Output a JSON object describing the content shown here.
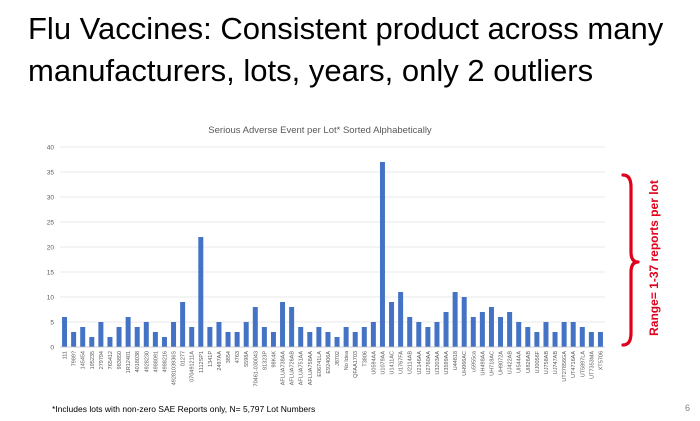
{
  "slide": {
    "title": "Flu Vaccines: Consistent product across many\nmanufacturers, lots, years, only 2 outliers",
    "footnote": "*Includes lots with non-zero SAE Reports only, N= 5,797 Lot Numbers",
    "slide_number": "6",
    "annotation": "Range= 1-37 reports per lot",
    "accent_color": "#e0001b"
  },
  "chart_data": {
    "type": "bar",
    "title": "Serious Adverse Event per Lot* Sorted Alphabetically",
    "xlabel": "",
    "ylabel": "",
    "ylim": [
      0,
      40
    ],
    "yticks": [
      0,
      5,
      10,
      15,
      20,
      25,
      30,
      35,
      40
    ],
    "grid": true,
    "bar_color": "#4472c4",
    "categories": [
      "111",
      "7989?",
      "145454",
      "195235",
      "279794",
      "765412",
      "983850",
      "1R12401",
      "4018038",
      "4928230",
      "4988091",
      "4988216",
      "4928103936S",
      "01277",
      "070491211A",
      "1112SP1",
      "1341P",
      "2497AA",
      "3854",
      "4763",
      "5598A",
      "70461-030043",
      "81323P",
      "98K4K",
      "AFLUA738AA",
      "AFLUA726AB",
      "AFLUA751AA",
      "AFLUA758AA",
      "E06741LA",
      "E92406A",
      "J8702",
      "No Idea",
      "QFAA1703",
      "T3806",
      "U0594AA",
      "U1079AA",
      "U1411AC",
      "U1767FA",
      "U2114AB",
      "U2146AA",
      "U2760AA",
      "U3203AA",
      "U3599AA",
      "U44818",
      "UH966AC",
      "u5955ca",
      "UH498AA",
      "UH718AC",
      "UH9072A",
      "UJ422AB",
      "UI544AA",
      "UI826AB",
      "UJ0056F",
      "UJ758AB",
      "UJ747AB",
      "UT27856GA",
      "UT4716AA",
      "UT5897LA",
      "UT7353MA",
      "XT5706"
    ],
    "values": [
      6,
      3,
      4,
      2,
      5,
      2,
      4,
      6,
      4,
      5,
      3,
      2,
      5,
      9,
      4,
      22,
      4,
      5,
      3,
      3,
      5,
      8,
      4,
      3,
      9,
      8,
      4,
      3,
      4,
      3,
      2,
      4,
      3,
      4,
      5,
      37,
      9,
      11,
      6,
      5,
      4,
      5,
      7,
      11,
      10,
      6,
      7,
      8,
      6,
      7,
      5,
      4,
      3,
      5,
      3,
      5,
      5,
      4,
      3,
      3
    ]
  }
}
